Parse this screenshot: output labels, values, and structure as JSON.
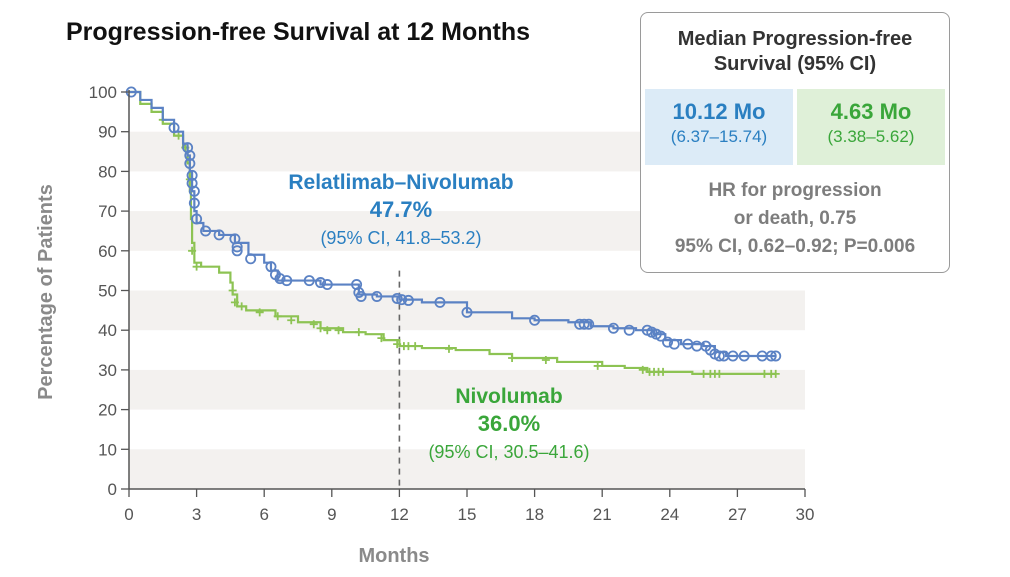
{
  "chart_data": {
    "type": "line",
    "title": "Progression-free Survival at 12 Months",
    "xlabel": "Months",
    "ylabel": "Percentage of Patients",
    "xlim": [
      0,
      30
    ],
    "ylim": [
      0,
      100
    ],
    "x_ticks": [
      0,
      3,
      6,
      9,
      12,
      15,
      18,
      21,
      24,
      27,
      30
    ],
    "y_ticks": [
      0,
      10,
      20,
      30,
      40,
      50,
      60,
      70,
      80,
      90,
      100
    ],
    "grid": "alternating horizontal bands",
    "reference_line_x": 12,
    "series": [
      {
        "name": "Relatlimab–Nivolumab",
        "color": "#5b82c4",
        "censor_marker": "circle",
        "points": [
          [
            0,
            100
          ],
          [
            0.5,
            98
          ],
          [
            1,
            96
          ],
          [
            1.5,
            93
          ],
          [
            2,
            90
          ],
          [
            2.4,
            87
          ],
          [
            2.6,
            84
          ],
          [
            2.7,
            80
          ],
          [
            2.8,
            75
          ],
          [
            2.9,
            70
          ],
          [
            3,
            67
          ],
          [
            3.3,
            65
          ],
          [
            4,
            64
          ],
          [
            4.7,
            62
          ],
          [
            5.3,
            59
          ],
          [
            6,
            57
          ],
          [
            6.3,
            55
          ],
          [
            6.6,
            52.5
          ],
          [
            8,
            52.5
          ],
          [
            8.5,
            51.5
          ],
          [
            10,
            51.5
          ],
          [
            10.2,
            49
          ],
          [
            11,
            48.5
          ],
          [
            12,
            47.7
          ],
          [
            13,
            47
          ],
          [
            15,
            44.5
          ],
          [
            17,
            43
          ],
          [
            18,
            42.5
          ],
          [
            19.5,
            42
          ],
          [
            20.5,
            41
          ],
          [
            21.5,
            40.5
          ],
          [
            22.5,
            40
          ],
          [
            23.3,
            39
          ],
          [
            23.8,
            37.5
          ],
          [
            24.5,
            36.5
          ],
          [
            25.5,
            36
          ],
          [
            26,
            34.5
          ],
          [
            26.5,
            33.5
          ],
          [
            28,
            33.5
          ],
          [
            28.7,
            33.5
          ]
        ],
        "censors": [
          [
            0.1,
            100
          ],
          [
            2.0,
            91
          ],
          [
            2.6,
            86
          ],
          [
            2.7,
            84
          ],
          [
            2.7,
            82
          ],
          [
            2.8,
            79
          ],
          [
            2.8,
            77
          ],
          [
            2.9,
            75
          ],
          [
            2.9,
            72
          ],
          [
            3,
            68
          ],
          [
            3.4,
            65
          ],
          [
            4,
            64
          ],
          [
            4.7,
            63
          ],
          [
            4.8,
            61
          ],
          [
            4.8,
            60
          ],
          [
            5.4,
            58
          ],
          [
            6.3,
            56
          ],
          [
            6.5,
            54
          ],
          [
            6.7,
            53
          ],
          [
            7,
            52.5
          ],
          [
            8,
            52.5
          ],
          [
            8.5,
            52
          ],
          [
            8.8,
            51.5
          ],
          [
            10.1,
            51.5
          ],
          [
            10.2,
            49.5
          ],
          [
            10.3,
            48.5
          ],
          [
            11,
            48.5
          ],
          [
            11.9,
            48
          ],
          [
            12.1,
            47.7
          ],
          [
            12.4,
            47.5
          ],
          [
            13.8,
            47
          ],
          [
            15,
            44.5
          ],
          [
            18,
            42.5
          ],
          [
            20,
            41.5
          ],
          [
            20.2,
            41.5
          ],
          [
            20.4,
            41.5
          ],
          [
            21.5,
            40.5
          ],
          [
            22.2,
            40
          ],
          [
            23,
            40
          ],
          [
            23.2,
            39.5
          ],
          [
            23.4,
            39
          ],
          [
            23.6,
            38.5
          ],
          [
            23.9,
            37
          ],
          [
            24.2,
            36.5
          ],
          [
            24.8,
            36.5
          ],
          [
            25.2,
            36
          ],
          [
            25.6,
            36
          ],
          [
            25.8,
            35
          ],
          [
            26,
            34
          ],
          [
            26.2,
            33.5
          ],
          [
            26.4,
            33.5
          ],
          [
            26.8,
            33.5
          ],
          [
            27.3,
            33.5
          ],
          [
            28.1,
            33.5
          ],
          [
            28.5,
            33.5
          ],
          [
            28.7,
            33.5
          ]
        ]
      },
      {
        "name": "Nivolumab",
        "color": "#8dc353",
        "censor_marker": "plus",
        "points": [
          [
            0,
            100
          ],
          [
            0.5,
            97
          ],
          [
            1,
            95
          ],
          [
            1.5,
            92
          ],
          [
            2,
            89
          ],
          [
            2.4,
            86
          ],
          [
            2.6,
            82
          ],
          [
            2.7,
            75
          ],
          [
            2.75,
            68
          ],
          [
            2.8,
            62
          ],
          [
            2.9,
            57
          ],
          [
            3.2,
            56
          ],
          [
            4,
            54.5
          ],
          [
            4.5,
            52
          ],
          [
            4.6,
            49
          ],
          [
            4.8,
            46
          ],
          [
            5.2,
            45
          ],
          [
            6.5,
            43.5
          ],
          [
            7.5,
            42
          ],
          [
            8.5,
            40.5
          ],
          [
            9.5,
            39.5
          ],
          [
            10.5,
            39
          ],
          [
            11.3,
            37.5
          ],
          [
            12,
            36
          ],
          [
            13,
            35.5
          ],
          [
            14.5,
            35
          ],
          [
            16,
            34
          ],
          [
            17,
            33
          ],
          [
            19,
            32
          ],
          [
            21,
            31
          ],
          [
            22,
            30.5
          ],
          [
            23,
            29.5
          ],
          [
            25,
            29
          ],
          [
            28.7,
            29
          ]
        ],
        "censors": [
          [
            1.5,
            93
          ],
          [
            2.2,
            89
          ],
          [
            2.5,
            86
          ],
          [
            2.7,
            78
          ],
          [
            2.8,
            60
          ],
          [
            3,
            56
          ],
          [
            4.6,
            50
          ],
          [
            4.7,
            47
          ],
          [
            5,
            46
          ],
          [
            5.8,
            44.5
          ],
          [
            6.6,
            43.5
          ],
          [
            7.2,
            42.5
          ],
          [
            8.2,
            41.5
          ],
          [
            8.5,
            40.5
          ],
          [
            8.8,
            40
          ],
          [
            9.3,
            40
          ],
          [
            10.2,
            39.5
          ],
          [
            11.2,
            38
          ],
          [
            11.9,
            36.5
          ],
          [
            12.2,
            36
          ],
          [
            12.4,
            36
          ],
          [
            12.7,
            36
          ],
          [
            14.2,
            35.3
          ],
          [
            17,
            33
          ],
          [
            18.5,
            32.5
          ],
          [
            20.8,
            31
          ],
          [
            22.8,
            30
          ],
          [
            23.1,
            29.5
          ],
          [
            23.3,
            29.5
          ],
          [
            23.5,
            29.5
          ],
          [
            23.7,
            29.5
          ],
          [
            25.5,
            29
          ],
          [
            25.8,
            29
          ],
          [
            26,
            29
          ],
          [
            26.2,
            29
          ],
          [
            28.2,
            29
          ],
          [
            28.5,
            29
          ],
          [
            28.7,
            29
          ]
        ]
      }
    ],
    "annotations": [
      {
        "series": "Relatlimab–Nivolumab",
        "name": "Relatlimab–Nivolumab",
        "value": "47.7%",
        "ci": "(95% CI, 41.8–53.2)"
      },
      {
        "series": "Nivolumab",
        "name": "Nivolumab",
        "value": "36.0%",
        "ci": "(95% CI, 30.5–41.6)"
      }
    ]
  },
  "median_box": {
    "title_line1": "Median Progression-free",
    "title_line2": "Survival (95% CI)",
    "relatlimab": {
      "value": "10.12 Mo",
      "ci": "(6.37–15.74)",
      "text_color": "#2a7fc1",
      "bg_color": "#dcebf7"
    },
    "nivolumab": {
      "value": "4.63 Mo",
      "ci": "(3.38–5.62)",
      "text_color": "#3aa63a",
      "bg_color": "#dff0d8"
    },
    "hr_line1": "HR for progression",
    "hr_line2": "or death, 0.75",
    "hr_line3": "95% CI, 0.62–0.92; P=0.006"
  },
  "colors": {
    "relatlimab_text": "#2a7fc1",
    "nivolumab_text": "#3aa63a",
    "band": "#f3f1ef",
    "axis": "#555555",
    "reference_line": "#666666"
  }
}
